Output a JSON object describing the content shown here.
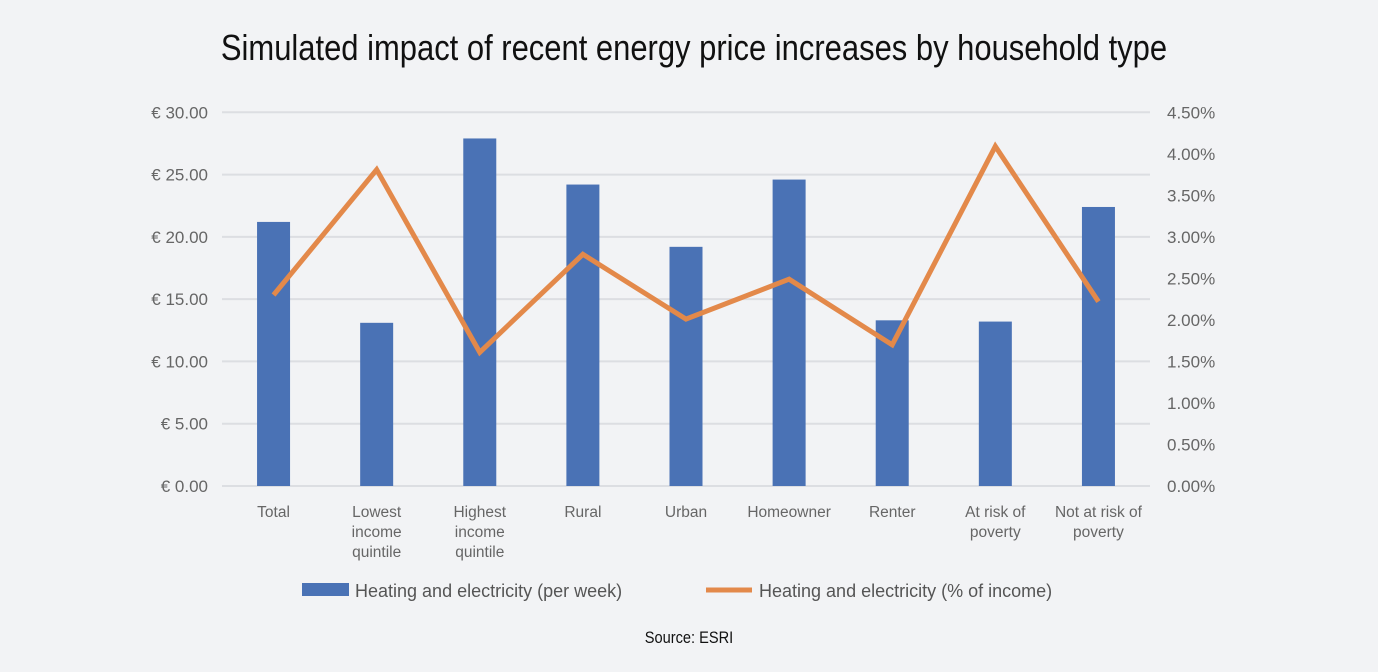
{
  "chart_data": {
    "type": "bar+line",
    "title": "Simulated impact of recent energy price increases by household type",
    "source": "Source: ESRI",
    "categories": [
      [
        "Total"
      ],
      [
        "Lowest",
        "income",
        "quintile"
      ],
      [
        "Highest",
        "income",
        "quintile"
      ],
      [
        "Rural"
      ],
      [
        "Urban"
      ],
      [
        "Homeowner"
      ],
      [
        "Renter"
      ],
      [
        "At risk of",
        "poverty"
      ],
      [
        "Not at risk of",
        "poverty"
      ]
    ],
    "series": [
      {
        "name": "Heating and electricity (per week)",
        "type": "bar",
        "axis": "left",
        "color": "#4a72b5",
        "values": [
          21.2,
          13.1,
          27.9,
          24.2,
          19.2,
          24.6,
          13.3,
          13.2,
          22.4
        ]
      },
      {
        "name": "Heating and electricity (% of income)",
        "type": "line",
        "axis": "right",
        "color": "#e3894a",
        "values": [
          2.3,
          3.81,
          1.61,
          2.79,
          2.01,
          2.49,
          1.7,
          4.09,
          2.22
        ]
      }
    ],
    "y_left": {
      "range": [
        0,
        30
      ],
      "ticks": [
        "€ 0.00",
        "€ 5.00",
        "€ 10.00",
        "€ 15.00",
        "€ 20.00",
        "€ 25.00",
        "€ 30.00"
      ]
    },
    "y_right": {
      "range": [
        0,
        4.5
      ],
      "ticks": [
        "0.00%",
        "0.50%",
        "1.00%",
        "1.50%",
        "2.00%",
        "2.50%",
        "3.00%",
        "3.50%",
        "4.00%",
        "4.50%"
      ]
    },
    "grid": true,
    "legend_placement": "bottom"
  }
}
